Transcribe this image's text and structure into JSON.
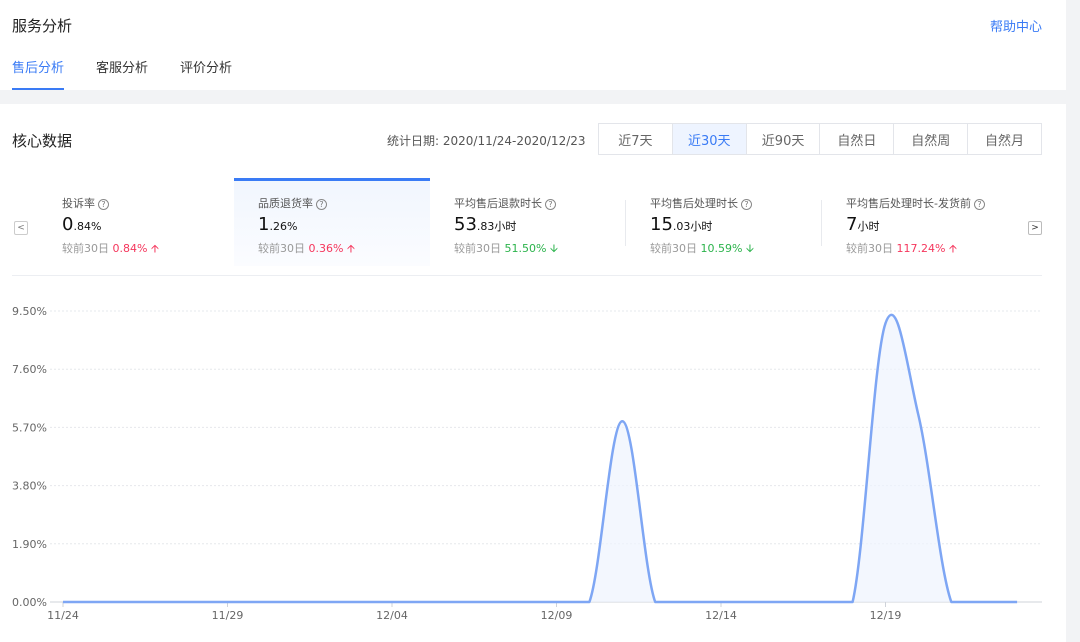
{
  "header": {
    "title": "服务分析",
    "help_link": "帮助中心",
    "tabs": [
      {
        "label": "售后分析",
        "active": true
      },
      {
        "label": "客服分析",
        "active": false
      },
      {
        "label": "评价分析",
        "active": false
      }
    ]
  },
  "core": {
    "title": "核心数据",
    "date_label": "统计日期: 2020/11/24-2020/12/23",
    "ranges": [
      {
        "label": "近7天",
        "active": false
      },
      {
        "label": "近30天",
        "active": true
      },
      {
        "label": "近90天",
        "active": false
      },
      {
        "label": "自然日",
        "active": false
      },
      {
        "label": "自然周",
        "active": false
      },
      {
        "label": "自然月",
        "active": false
      }
    ],
    "prev_icon": "chevron-left-icon",
    "next_icon": "chevron-right-icon"
  },
  "metrics": [
    {
      "label": "投诉率",
      "value_main": "0",
      "value_small": ".84%",
      "compare_label": "较前30日",
      "compare_value": "0.84%",
      "trend": "up",
      "active": false
    },
    {
      "label": "品质退货率",
      "value_main": "1",
      "value_small": ".26%",
      "compare_label": "较前30日",
      "compare_value": "0.36%",
      "trend": "up",
      "active": true
    },
    {
      "label": "平均售后退款时长",
      "value_main": "53",
      "value_small": ".83小时",
      "compare_label": "较前30日",
      "compare_value": "51.50%",
      "trend": "down",
      "active": false
    },
    {
      "label": "平均售后处理时长",
      "value_main": "15",
      "value_small": ".03小时",
      "compare_label": "较前30日",
      "compare_value": "10.59%",
      "trend": "down",
      "active": false
    },
    {
      "label": "平均售后处理时长-发货前",
      "value_main": "7",
      "value_small": "小时",
      "compare_label": "较前30日",
      "compare_value": "117.24%",
      "trend": "up",
      "active": false
    }
  ],
  "colors": {
    "accent": "#3a7bf5",
    "up": "#f5365c",
    "down": "#2bb34b",
    "line": "#7ea6f4"
  },
  "chart_data": {
    "type": "area",
    "ylim": [
      0,
      9.5
    ],
    "y_ticks": [
      "0.00%",
      "1.90%",
      "3.80%",
      "5.70%",
      "7.60%",
      "9.50%"
    ],
    "y_tick_values": [
      0,
      1.9,
      3.8,
      5.7,
      7.6,
      9.5
    ],
    "x_ticks": [
      "11/24",
      "11/29",
      "12/04",
      "12/09",
      "12/14",
      "12/19"
    ],
    "x_tick_index": [
      0,
      5,
      10,
      15,
      20,
      25
    ],
    "x": [
      "11/24",
      "11/25",
      "11/26",
      "11/27",
      "11/28",
      "11/29",
      "11/30",
      "12/01",
      "12/02",
      "12/03",
      "12/04",
      "12/05",
      "12/06",
      "12/07",
      "12/08",
      "12/09",
      "12/10",
      "12/11",
      "12/12",
      "12/13",
      "12/14",
      "12/15",
      "12/16",
      "12/17",
      "12/18",
      "12/19",
      "12/20",
      "12/21",
      "12/22",
      "12/23"
    ],
    "series": [
      {
        "values": [
          0,
          0,
          0,
          0,
          0,
          0,
          0,
          0,
          0,
          0,
          0,
          0,
          0,
          0,
          0,
          0,
          0,
          5.9,
          0,
          0,
          0,
          0,
          0,
          0,
          0,
          9.1,
          6.1,
          0,
          0,
          0
        ]
      }
    ],
    "grid": true
  }
}
